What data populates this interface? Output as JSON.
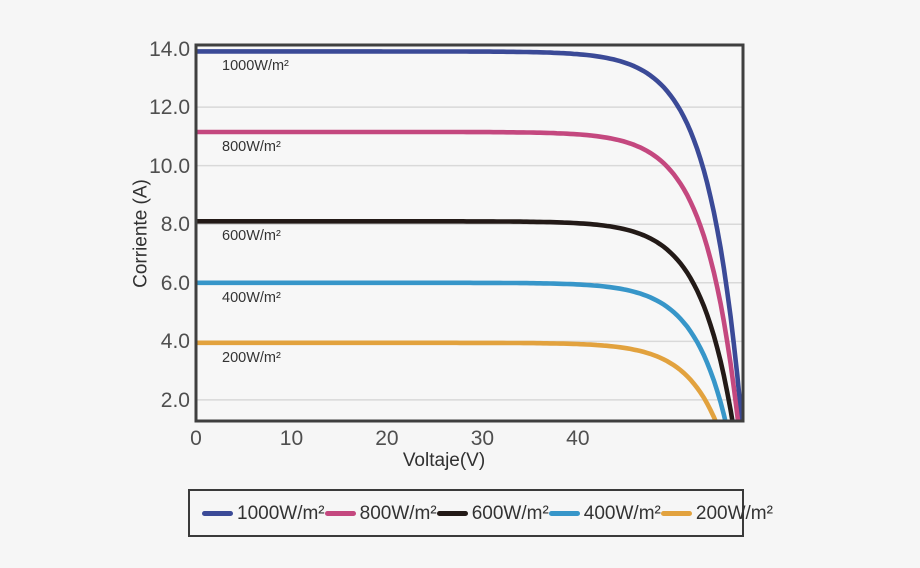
{
  "chart_data": {
    "type": "line",
    "title": "",
    "xlabel": "Voltaje(V)",
    "ylabel": "Corriente (A)",
    "x_ticks": [
      0,
      10,
      20,
      30,
      40
    ],
    "y_ticks": [
      2.0,
      4.0,
      6.0,
      8.0,
      10.0,
      12.0,
      14.0
    ],
    "xlim": [
      0,
      57.3
    ],
    "ylim": [
      1.28,
      14.12
    ],
    "grid": "horizontal",
    "legend_position": "bottom",
    "curve_model": "I = Isc*(1-exp((V-Voc)/a))",
    "knee_sharpness_v": 3.5,
    "series": [
      {
        "name": "1000W/m²",
        "color": "#3b4a97",
        "isc": 13.9,
        "voc": 57.5
      },
      {
        "name": "800W/m²",
        "color": "#c4487f",
        "isc": 11.15,
        "voc": 57.2
      },
      {
        "name": "600W/m²",
        "color": "#231a17",
        "isc": 8.1,
        "voc": 56.8
      },
      {
        "name": "400W/m²",
        "color": "#3796c9",
        "isc": 6.0,
        "voc": 56.3
      },
      {
        "name": "200W/m²",
        "color": "#e2a23e",
        "isc": 3.95,
        "voc": 55.8
      }
    ]
  },
  "style_colors": {
    "frame": "#3f3f3f",
    "gridline": "#d9d9d9",
    "background": "#f6f6f6",
    "plot_background": "#f7f7f7"
  }
}
